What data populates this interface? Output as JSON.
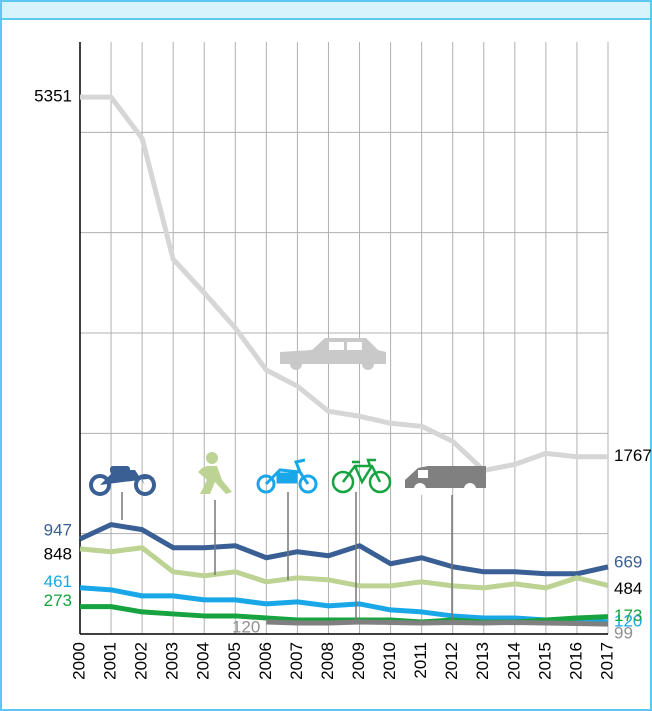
{
  "chart_data": {
    "type": "line",
    "x": [
      2000,
      2001,
      2002,
      2003,
      2004,
      2005,
      2006,
      2007,
      2008,
      2009,
      2010,
      2011,
      2012,
      2013,
      2014,
      2015,
      2016,
      2017
    ],
    "xlim": [
      2000,
      2017
    ],
    "ylim": [
      0,
      6000
    ],
    "yticks": [
      0,
      1000,
      2000,
      3000,
      4000,
      5000
    ],
    "grid": true,
    "series": [
      {
        "name": "Car",
        "color": "#d6d6d6",
        "label_color": "#000000",
        "values": [
          5351,
          5351,
          4940,
          3735,
          3400,
          3050,
          2630,
          2470,
          2220,
          2170,
          2100,
          2070,
          1920,
          1630,
          1690,
          1800,
          1767,
          1767
        ]
      },
      {
        "name": "Motorcycle",
        "color": "#3a5f94",
        "label_color": "#3a5f94",
        "values": [
          947,
          1090,
          1040,
          860,
          860,
          880,
          760,
          820,
          780,
          880,
          700,
          760,
          670,
          620,
          620,
          600,
          600,
          669
        ]
      },
      {
        "name": "Pedestrian",
        "color": "#bcd394",
        "label_color": "#000000",
        "values": [
          848,
          820,
          860,
          620,
          580,
          620,
          520,
          560,
          540,
          480,
          480,
          520,
          480,
          460,
          500,
          460,
          560,
          484
        ]
      },
      {
        "name": "Moped",
        "color": "#1aa7e8",
        "label_color": "#1aa7e8",
        "values": [
          461,
          440,
          380,
          380,
          340,
          340,
          300,
          320,
          280,
          300,
          240,
          220,
          180,
          160,
          160,
          140,
          140,
          120
        ]
      },
      {
        "name": "Bicycle",
        "color": "#17a340",
        "label_color": "#17a340",
        "values": [
          273,
          273,
          220,
          200,
          180,
          180,
          160,
          140,
          140,
          140,
          140,
          120,
          140,
          120,
          120,
          140,
          160,
          173
        ]
      },
      {
        "name": "Van",
        "color": "#808080",
        "label_color": "#909090",
        "values": [
          null,
          null,
          null,
          null,
          null,
          null,
          120,
          110,
          110,
          120,
          115,
          110,
          115,
          110,
          115,
          110,
          105,
          99
        ]
      }
    ]
  }
}
